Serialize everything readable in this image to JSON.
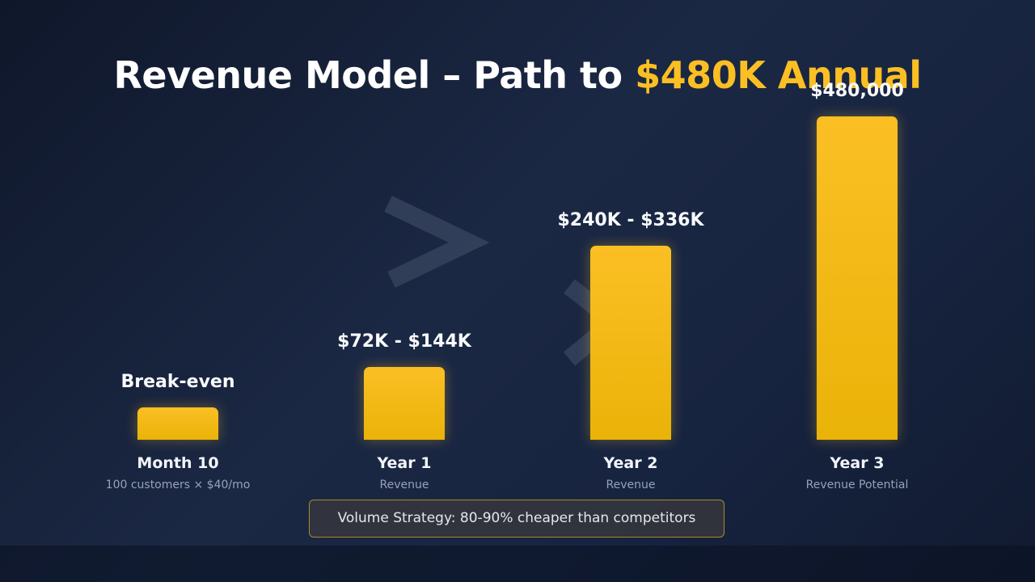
{
  "title": {
    "main": "Revenue Model – Path to ",
    "highlight": "$480K Annual"
  },
  "colors": {
    "accent": "#fbbf24",
    "background": "#1b2844"
  },
  "chart_data": {
    "type": "bar",
    "categories": [
      "Month 10",
      "Year 1",
      "Year 2",
      "Year 3"
    ],
    "sublabels": [
      "100 customers × $40/mo",
      "Revenue",
      "Revenue",
      "Revenue Potential"
    ],
    "value_labels": [
      "Break-even",
      "$72K - $144K",
      "$240K - $336K",
      "$480,000"
    ],
    "values": [
      48000,
      108000,
      288000,
      480000
    ],
    "ylim": [
      0,
      480000
    ]
  },
  "footer": {
    "text": "Volume Strategy: 80-90% cheaper than competitors"
  }
}
